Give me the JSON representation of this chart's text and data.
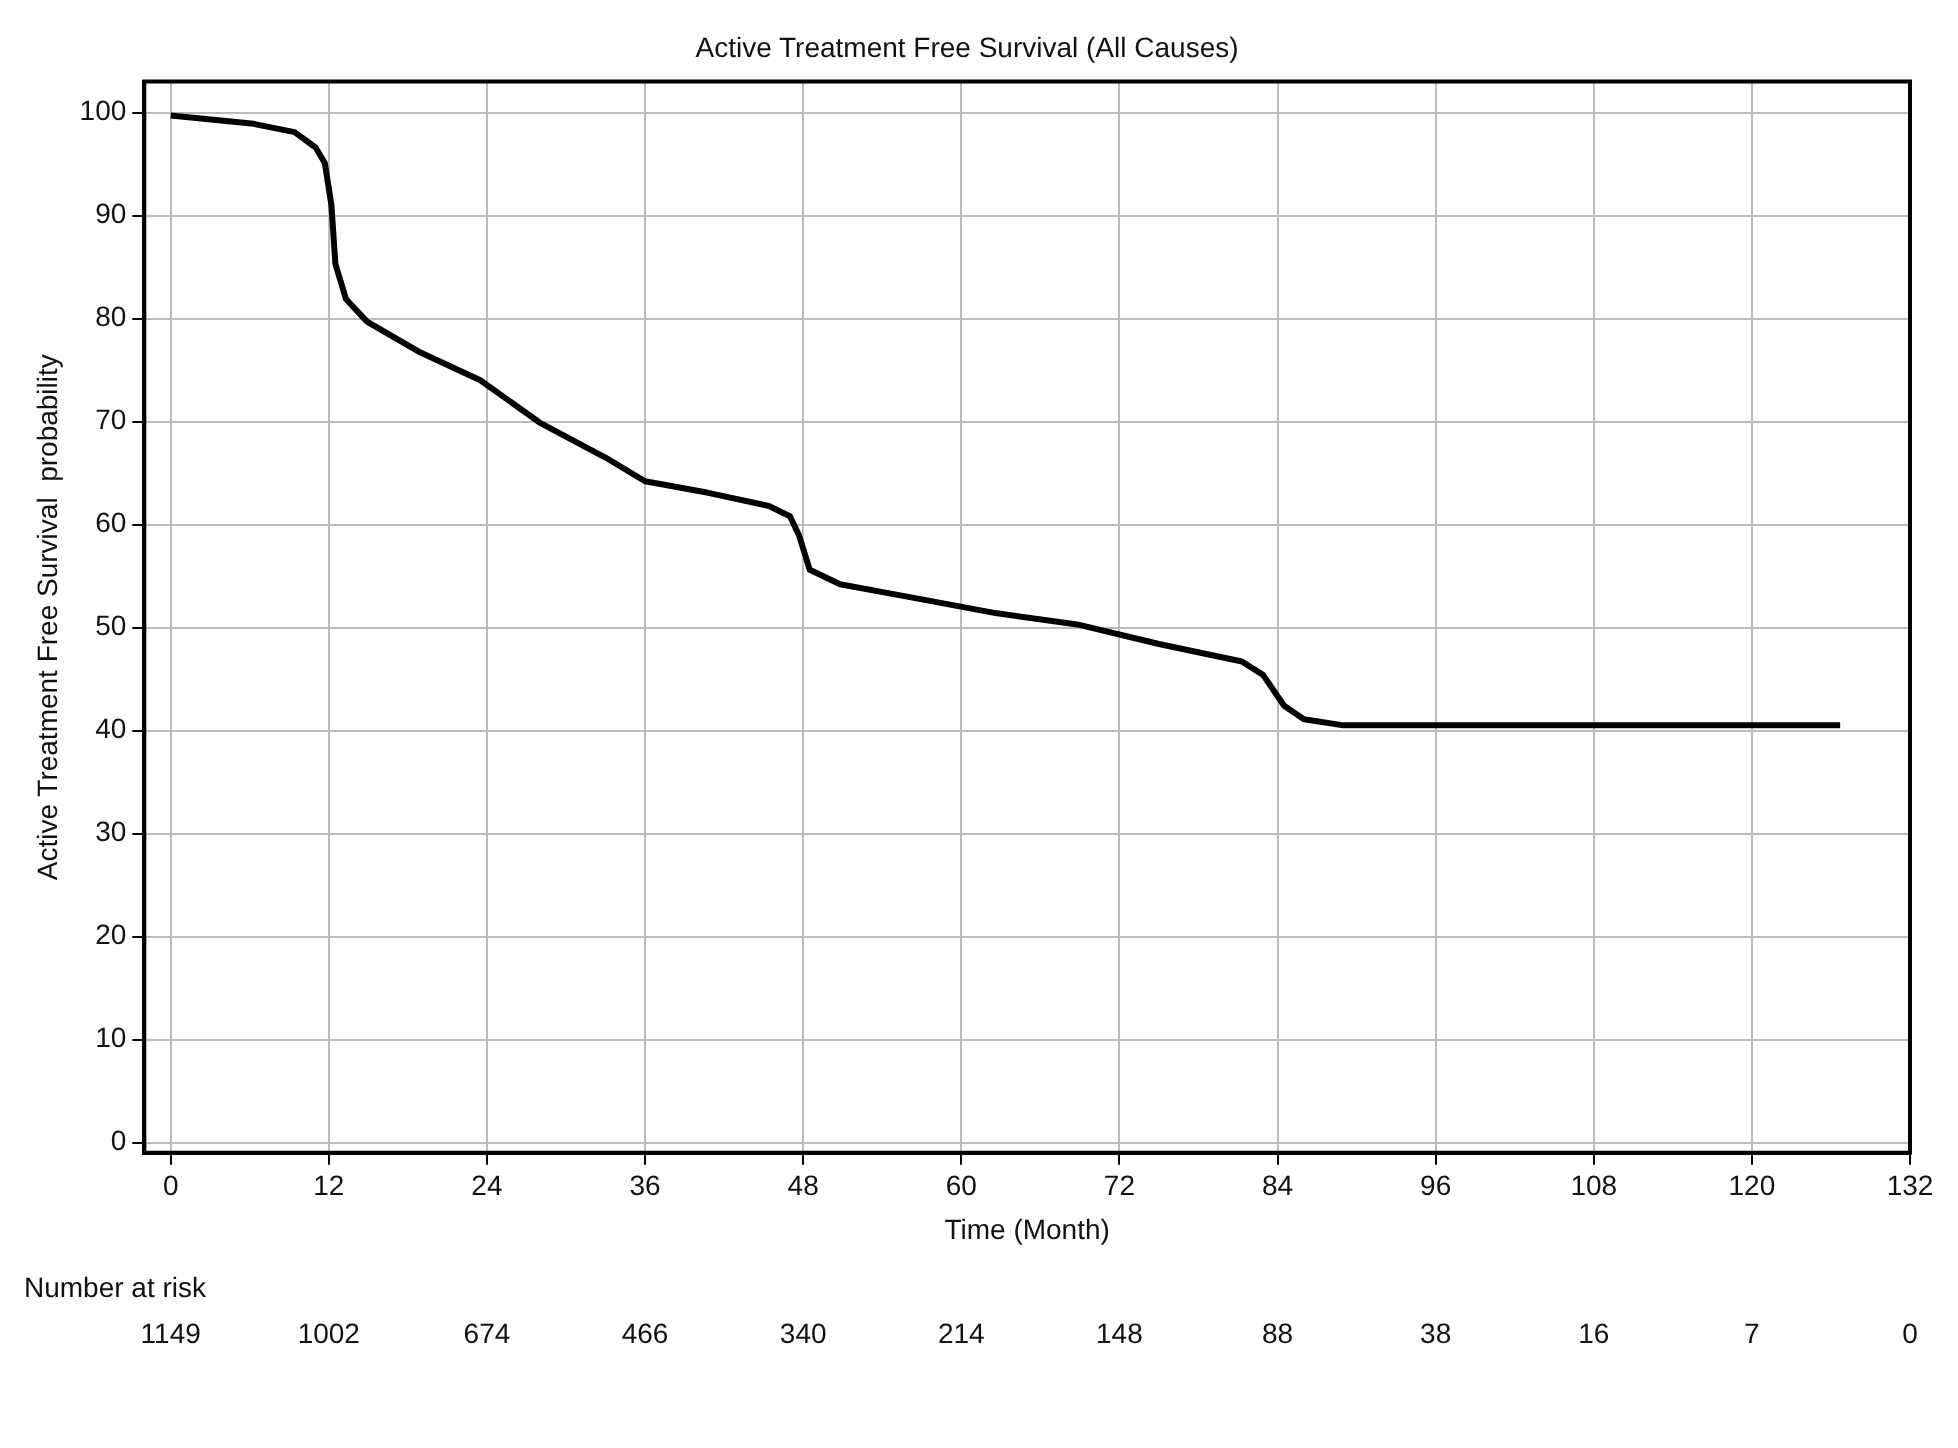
{
  "chart_data": {
    "type": "line",
    "title": "Active Treatment Free Survival (All Causes)",
    "xlabel": "Time (Month)",
    "ylabel": "Active Treatment Free Survival  probability",
    "x": [
      0,
      6.3,
      9.4,
      11,
      11.7,
      12.2,
      12.5,
      13.3,
      14.9,
      18.8,
      23.5,
      28,
      33,
      36,
      40.7,
      45.4,
      47,
      47.7,
      48.5,
      50.8,
      56.3,
      62.6,
      68.8,
      75,
      81.3,
      82.9,
      84.5,
      86,
      89,
      126.7
    ],
    "series": [
      {
        "color": "#000000",
        "values": [
          99.7,
          98.9,
          98.1,
          96.6,
          95.1,
          91,
          85.3,
          81.9,
          79.7,
          76.8,
          74,
          69.9,
          66.5,
          64.2,
          63.1,
          61.8,
          60.8,
          58.9,
          55.6,
          54.2,
          52.9,
          51.4,
          50.3,
          48.4,
          46.7,
          45.4,
          42.4,
          41.1,
          40.5,
          40.5
        ]
      }
    ],
    "xlim": [
      -2,
      132
    ],
    "xticks": [
      0,
      12,
      24,
      36,
      48,
      60,
      72,
      84,
      96,
      108,
      120,
      132
    ],
    "ylim": [
      -1,
      103
    ],
    "yticks": [
      0,
      10,
      20,
      30,
      40,
      50,
      60,
      70,
      80,
      90,
      100
    ],
    "grid": true,
    "legend": false,
    "marker": "none",
    "line_style": "solid",
    "annotations": [
      "Number at risk",
      "1149",
      "1002",
      "674",
      "466",
      "340",
      "214",
      "148",
      "88",
      "38",
      "16",
      "7",
      "0"
    ]
  }
}
